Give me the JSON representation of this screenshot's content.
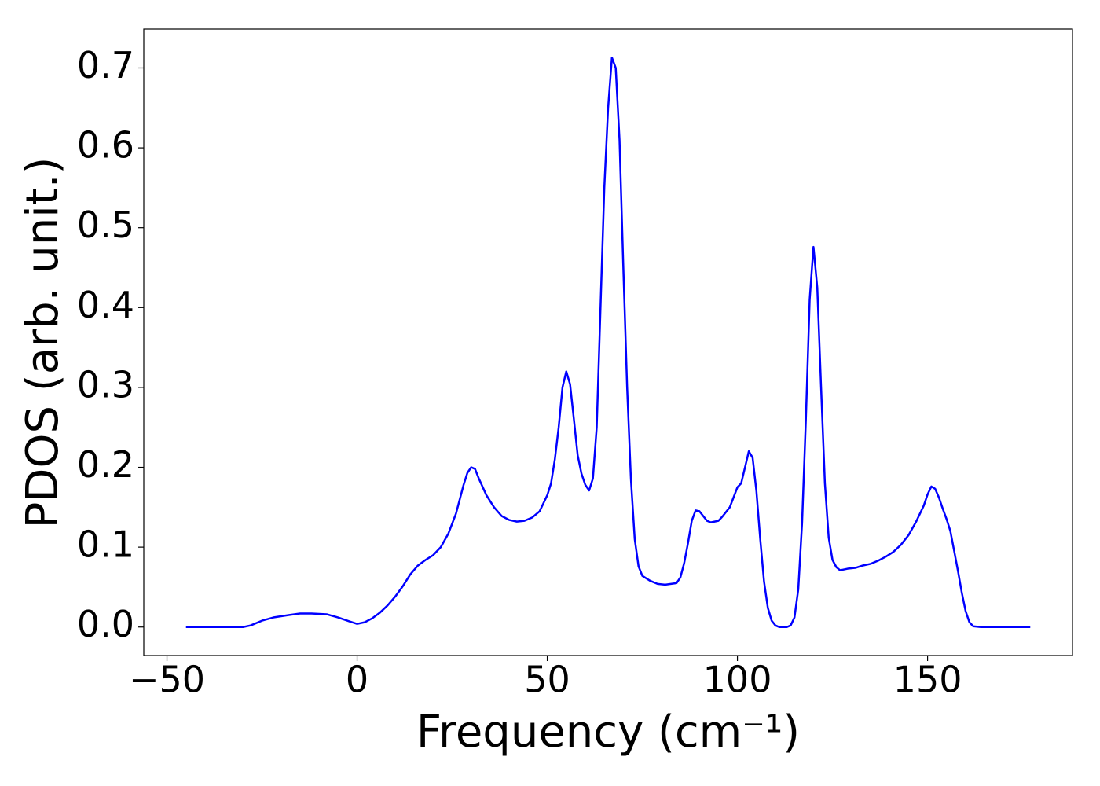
{
  "chart_data": {
    "type": "line",
    "xlabel": "Frequency (cm⁻¹)",
    "ylabel": "PDOS (arb. unit.)",
    "xlim": [
      -56.1,
      188.1
    ],
    "xticks": [
      {
        "value": -50,
        "label": "−50"
      },
      0,
      50,
      100,
      150
    ],
    "ylim": [
      -0.0357,
      0.7487
    ],
    "yticks": [
      {
        "value": 0,
        "label": "0.0"
      },
      0.1,
      0.2,
      0.3,
      0.4,
      0.5,
      0.6,
      0.7
    ],
    "grid": false,
    "series": [
      {
        "color": "#0000ff",
        "x": [
          -45,
          -30,
          -28,
          -25,
          -22,
          -18,
          -15,
          -12,
          -8,
          -5,
          -2,
          0,
          2,
          4,
          6,
          8,
          10,
          12,
          14,
          16,
          18,
          20,
          22,
          24,
          26,
          27,
          28,
          29,
          30,
          31,
          32,
          34,
          36,
          38,
          40,
          42,
          44,
          46,
          48,
          50,
          51,
          52,
          53,
          54,
          55,
          56,
          57,
          58,
          59,
          60,
          61,
          62,
          63,
          64,
          65,
          66,
          67,
          68,
          69,
          70,
          71,
          72,
          73,
          74,
          75,
          77,
          79,
          81,
          84,
          85,
          86,
          87,
          88,
          89,
          90,
          92,
          93,
          95,
          96,
          98,
          100,
          101,
          102,
          103,
          104,
          105,
          106,
          107,
          108,
          109,
          110,
          111,
          113,
          114,
          115,
          116,
          117,
          118,
          119,
          120,
          121,
          122,
          123,
          124,
          125,
          126,
          127,
          129,
          131,
          133,
          135,
          137,
          139,
          141,
          143,
          145,
          147,
          149,
          150,
          151,
          152,
          153,
          154,
          155,
          156,
          157,
          158,
          159,
          160,
          161,
          162,
          164,
          177
        ],
        "values": [
          0,
          0,
          0.002,
          0.008,
          0.012,
          0.015,
          0.017,
          0.017,
          0.016,
          0.012,
          0.007,
          0.004,
          0.006,
          0.011,
          0.018,
          0.027,
          0.038,
          0.051,
          0.066,
          0.077,
          0.084,
          0.09,
          0.1,
          0.117,
          0.142,
          0.16,
          0.178,
          0.193,
          0.2,
          0.198,
          0.186,
          0.165,
          0.15,
          0.139,
          0.134,
          0.132,
          0.133,
          0.137,
          0.145,
          0.165,
          0.18,
          0.21,
          0.25,
          0.3,
          0.32,
          0.304,
          0.26,
          0.215,
          0.192,
          0.178,
          0.171,
          0.186,
          0.25,
          0.4,
          0.55,
          0.65,
          0.713,
          0.7,
          0.61,
          0.45,
          0.3,
          0.185,
          0.11,
          0.076,
          0.064,
          0.058,
          0.054,
          0.053,
          0.055,
          0.062,
          0.08,
          0.105,
          0.133,
          0.146,
          0.145,
          0.133,
          0.131,
          0.133,
          0.138,
          0.15,
          0.175,
          0.18,
          0.2,
          0.22,
          0.212,
          0.17,
          0.11,
          0.057,
          0.024,
          0.008,
          0.002,
          0,
          0,
          0.002,
          0.012,
          0.047,
          0.13,
          0.26,
          0.41,
          0.476,
          0.425,
          0.3,
          0.18,
          0.112,
          0.084,
          0.075,
          0.071,
          0.073,
          0.074,
          0.077,
          0.079,
          0.083,
          0.088,
          0.094,
          0.103,
          0.115,
          0.132,
          0.152,
          0.166,
          0.176,
          0.173,
          0.162,
          0.148,
          0.135,
          0.12,
          0.095,
          0.07,
          0.043,
          0.02,
          0.006,
          0.001,
          0,
          0
        ]
      }
    ]
  }
}
